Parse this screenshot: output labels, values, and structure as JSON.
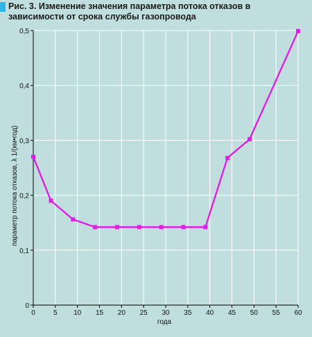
{
  "title": "Рис. 3. Изменение значения параметра потока отказов в зависимости от срока службы газопровода",
  "colors": {
    "background": "#bfdedd",
    "grid": "#ffffff",
    "line": "#e21ee6",
    "title_marker": "#2eb7e6"
  },
  "chart_data": {
    "type": "line",
    "title": "Рис. 3. Изменение значения параметра потока отказов в зависимости от срока службы газопровода",
    "xlabel": "года",
    "ylabel": "параметр потока отказов, λ 1/(км•год)",
    "xlim": [
      0,
      60
    ],
    "ylim": [
      0,
      0.5
    ],
    "x_ticks": [
      0,
      5,
      10,
      15,
      20,
      25,
      30,
      35,
      40,
      45,
      50,
      55,
      60
    ],
    "x_tick_labels": [
      "0",
      "5",
      "10",
      "15",
      "20",
      "25",
      "30",
      "35",
      "40",
      "45",
      "50",
      "55",
      "60"
    ],
    "y_ticks": [
      0,
      0.1,
      0.2,
      0.3,
      0.4,
      0.5
    ],
    "y_tick_labels": [
      "0",
      "0,1",
      "0,2",
      "0,3",
      "0,4",
      "0,5"
    ],
    "grid": true,
    "series": [
      {
        "x": [
          0,
          4,
          9,
          14,
          19,
          24,
          29,
          34,
          39,
          44,
          49,
          60
        ],
        "y": [
          0.27,
          0.19,
          0.156,
          0.142,
          0.142,
          0.142,
          0.142,
          0.142,
          0.142,
          0.268,
          0.302,
          0.499
        ]
      }
    ]
  }
}
